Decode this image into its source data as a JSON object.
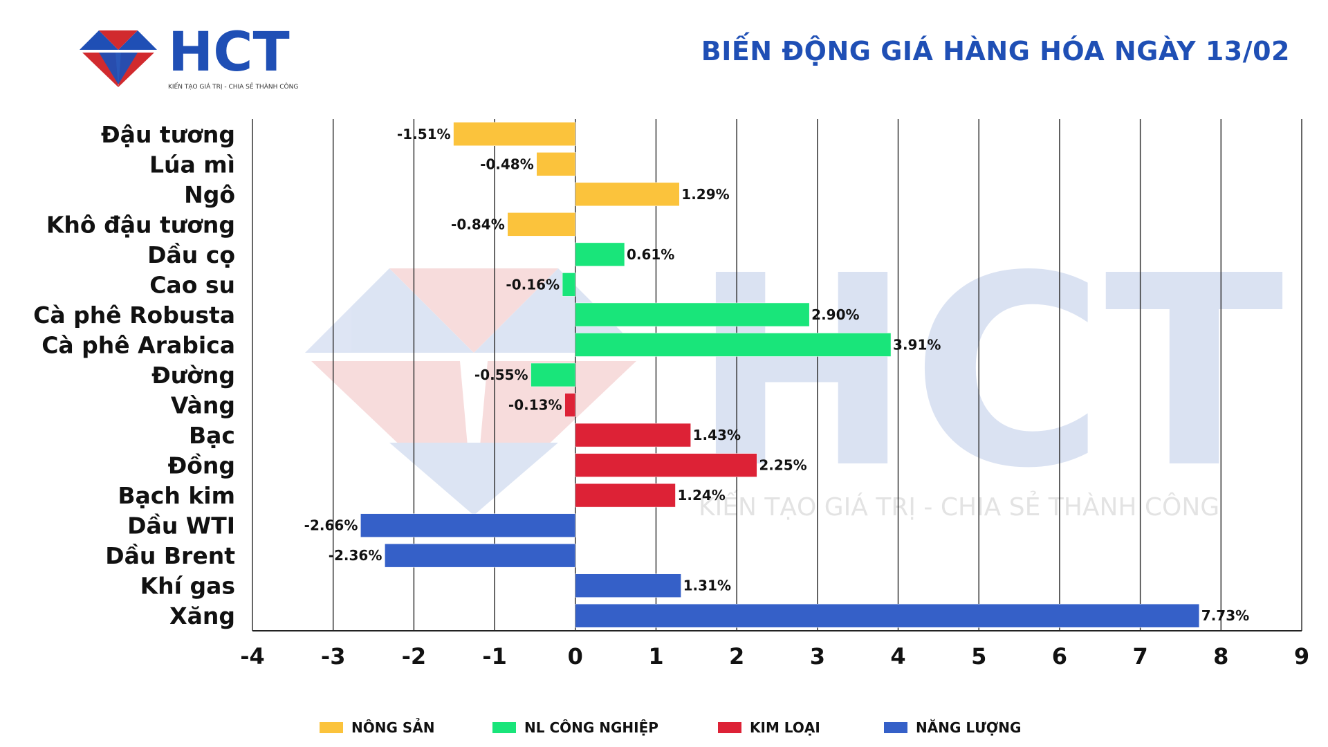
{
  "logo": {
    "brand": "HCT",
    "tagline": "KIẾN TẠO GIÁ TRỊ - CHIA SẺ THÀNH CÔNG",
    "colors": {
      "red": "#d12a2e",
      "blue": "#1f4fb5"
    }
  },
  "watermark": {
    "brand": "HCT",
    "tagline": "KIẾN TẠO GIÁ TRỊ - CHIA SẺ THÀNH CÔNG"
  },
  "chart_data": {
    "type": "bar",
    "orientation": "horizontal",
    "title": "BIẾN ĐỘNG GIÁ HÀNG HÓA NGÀY 13/02",
    "xlabel": "",
    "ylabel": "",
    "xlim": [
      -4,
      9
    ],
    "xticks": [
      -4,
      -3,
      -2,
      -1,
      0,
      1,
      2,
      3,
      4,
      5,
      6,
      7,
      8,
      9
    ],
    "grid": "vertical",
    "legend_position": "bottom",
    "groups": [
      {
        "name": "NÔNG SẢN",
        "color": "#fbc33c"
      },
      {
        "name": "NL CÔNG NGHIỆP",
        "color": "#19e57a"
      },
      {
        "name": "KIM LOẠI",
        "color": "#dd2236"
      },
      {
        "name": "NĂNG LƯỢNG",
        "color": "#3560c8"
      }
    ],
    "bars": [
      {
        "category": "Đậu tương",
        "value": -1.51,
        "label": "-1.51%",
        "group": 0
      },
      {
        "category": "Lúa mì",
        "value": -0.48,
        "label": "-0.48%",
        "group": 0
      },
      {
        "category": "Ngô",
        "value": 1.29,
        "label": "1.29%",
        "group": 0
      },
      {
        "category": "Khô đậu tương",
        "value": -0.84,
        "label": "-0.84%",
        "group": 0
      },
      {
        "category": "Dầu cọ",
        "value": 0.61,
        "label": "0.61%",
        "group": 1
      },
      {
        "category": "Cao su",
        "value": -0.16,
        "label": "-0.16%",
        "group": 1
      },
      {
        "category": "Cà phê Robusta",
        "value": 2.9,
        "label": "2.90%",
        "group": 1
      },
      {
        "category": "Cà phê Arabica",
        "value": 3.91,
        "label": "3.91%",
        "group": 1
      },
      {
        "category": "Đường",
        "value": -0.55,
        "label": "-0.55%",
        "group": 1
      },
      {
        "category": "Vàng",
        "value": -0.13,
        "label": "-0.13%",
        "group": 2
      },
      {
        "category": "Bạc",
        "value": 1.43,
        "label": "1.43%",
        "group": 2
      },
      {
        "category": "Đồng",
        "value": 2.25,
        "label": "2.25%",
        "group": 2
      },
      {
        "category": "Bạch kim",
        "value": 1.24,
        "label": "1.24%",
        "group": 2
      },
      {
        "category": "Dầu WTI",
        "value": -2.66,
        "label": "-2.66%",
        "group": 3
      },
      {
        "category": "Dầu Brent",
        "value": -2.36,
        "label": "-2.36%",
        "group": 3
      },
      {
        "category": "Khí gas",
        "value": 1.31,
        "label": "1.31%",
        "group": 3
      },
      {
        "category": "Xăng",
        "value": 7.73,
        "label": "7.73%",
        "group": 3
      }
    ]
  }
}
